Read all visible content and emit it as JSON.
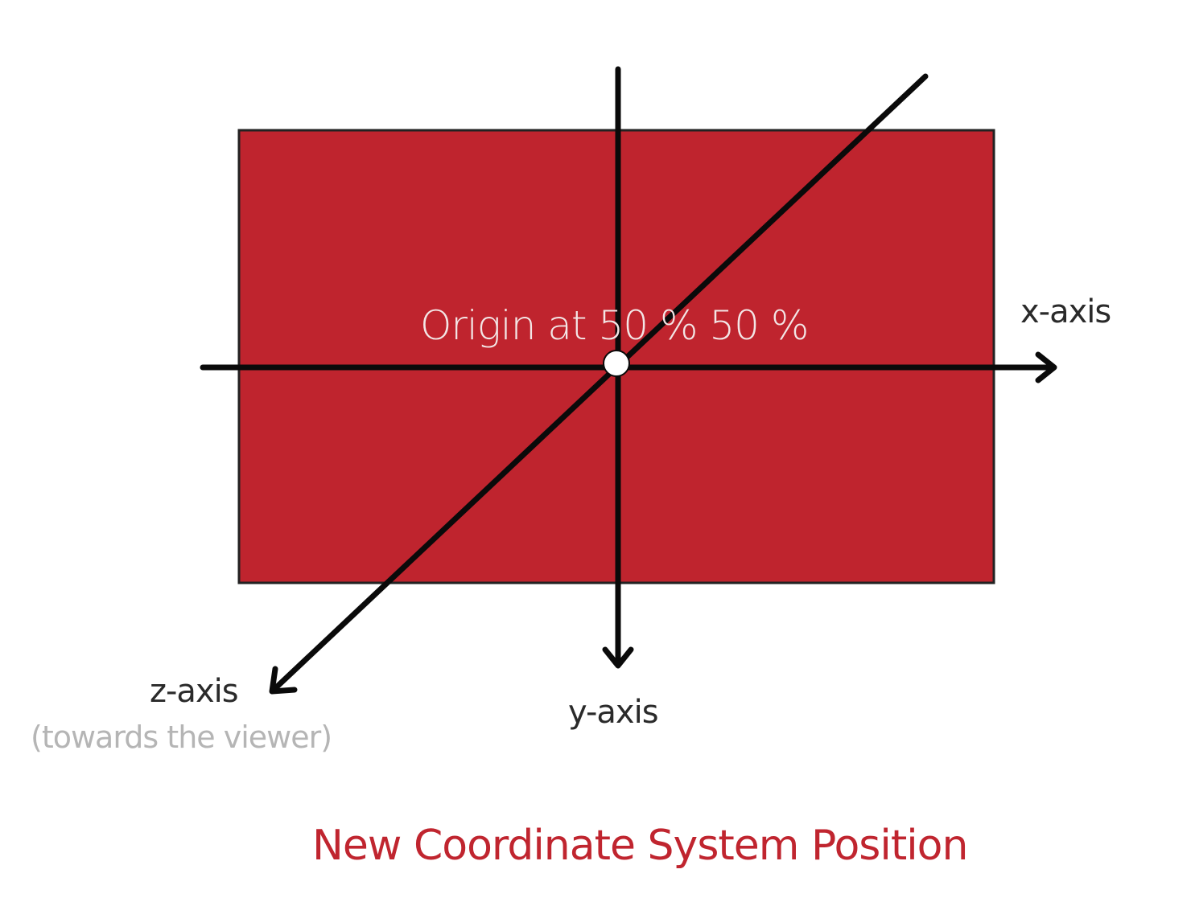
{
  "colors": {
    "box_fill": "#bf242e",
    "box_border": "#222222",
    "axis": "#0a0a0a",
    "origin_dot": "#ffffff",
    "caption": "#c0252f",
    "note": "#b5b5b5"
  },
  "diagram": {
    "origin_label": "Origin at 50 % 50 %",
    "x_axis_label": "x-axis",
    "y_axis_label": "y-axis",
    "z_axis_label": "z-axis",
    "z_axis_note": "(towards the viewer)",
    "caption": "New Coordinate System Position"
  }
}
